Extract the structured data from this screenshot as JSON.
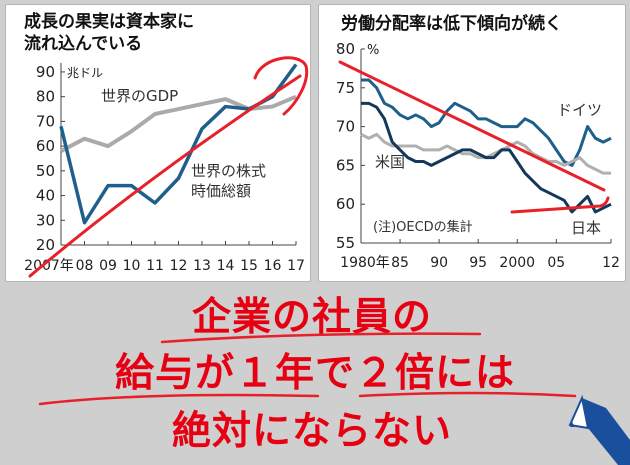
{
  "chart_data": [
    {
      "type": "line",
      "title": "成長の果実は資本家に流れ込んでいる",
      "title_lines": [
        "成長の果実は資本家に",
        "流れ込んでいる"
      ],
      "unit_label": "兆ドル",
      "x_tick_labels": [
        "2007年",
        "08",
        "09",
        "10",
        "11",
        "12",
        "13",
        "14",
        "15",
        "16",
        "17"
      ],
      "y_ticks": [
        20,
        30,
        40,
        50,
        60,
        70,
        80,
        90
      ],
      "ylim": [
        20,
        92
      ],
      "grid": false,
      "series": [
        {
          "name": "世界のGDP",
          "name_lines": [
            "世界のGDP"
          ],
          "color": "#aaaaaa",
          "x": [
            2007,
            2008,
            2009,
            2010,
            2011,
            2012,
            2013,
            2014,
            2015,
            2016,
            2017
          ],
          "values": [
            58,
            63,
            60,
            66,
            73,
            75,
            77,
            79,
            75,
            76,
            80
          ]
        },
        {
          "name": "世界の株式時価総額",
          "name_lines": [
            "世界の株式",
            "時価総額"
          ],
          "color": "#1f5f8b",
          "x": [
            2007,
            2008,
            2009,
            2010,
            2011,
            2012,
            2013,
            2014,
            2015,
            2016,
            2017
          ],
          "values": [
            68,
            29,
            44,
            44,
            37,
            47,
            67,
            76,
            75,
            80,
            93
          ]
        }
      ]
    },
    {
      "type": "line",
      "title": "労働分配率は低下傾向が続く",
      "unit_label": "%",
      "x_tick_labels": [
        "1980年",
        "85",
        "90",
        "95",
        "2000",
        "05",
        "12"
      ],
      "y_ticks": [
        55,
        60,
        65,
        70,
        75,
        80
      ],
      "ylim": [
        55,
        80
      ],
      "note": "(注)OECDの集計",
      "grid": false,
      "series": [
        {
          "name": "ドイツ",
          "color": "#1f5f8b",
          "x": [
            1980,
            1981,
            1982,
            1983,
            1984,
            1985,
            1986,
            1987,
            1988,
            1989,
            1990,
            1991,
            1992,
            1993,
            1994,
            1995,
            1996,
            1997,
            1998,
            1999,
            2000,
            2001,
            2002,
            2003,
            2004,
            2005,
            2006,
            2007,
            2008,
            2009,
            2010,
            2011,
            2012
          ],
          "values": [
            76,
            76,
            75,
            73,
            72.5,
            71.5,
            71,
            71.5,
            71,
            70,
            70.5,
            72,
            73,
            72.5,
            72,
            71,
            71,
            70.5,
            70,
            70,
            70,
            71,
            70.5,
            69.5,
            68.5,
            67,
            65.5,
            65,
            67,
            70,
            68.5,
            68,
            68.5
          ]
        },
        {
          "name": "米国",
          "color": "#b0b0b0",
          "x": [
            1980,
            1981,
            1982,
            1983,
            1984,
            1985,
            1986,
            1987,
            1988,
            1989,
            1990,
            1991,
            1992,
            1993,
            1994,
            1995,
            1996,
            1997,
            1998,
            1999,
            2000,
            2001,
            2002,
            2003,
            2004,
            2005,
            2006,
            2007,
            2008,
            2009,
            2010,
            2011,
            2012
          ],
          "values": [
            69,
            68.5,
            69,
            68,
            67.5,
            67.5,
            67.5,
            67.5,
            67,
            67,
            67,
            67.5,
            67,
            66.5,
            66.5,
            66,
            66,
            66.5,
            67,
            67.5,
            68,
            67.5,
            66.5,
            66,
            65.5,
            65.5,
            65,
            65.5,
            66,
            65,
            64.5,
            64,
            64
          ]
        },
        {
          "name": "日本",
          "color": "#14385a",
          "x": [
            1980,
            1981,
            1982,
            1983,
            1984,
            1985,
            1986,
            1987,
            1988,
            1989,
            1990,
            1991,
            1992,
            1993,
            1994,
            1995,
            1996,
            1997,
            1998,
            1999,
            2000,
            2001,
            2002,
            2003,
            2004,
            2005,
            2006,
            2007,
            2008,
            2009,
            2010,
            2011,
            2012
          ],
          "values": [
            73,
            73,
            72.5,
            71,
            68,
            67,
            66,
            65.5,
            65.5,
            65,
            65.5,
            66,
            66.5,
            67,
            67,
            66.5,
            66,
            66,
            67,
            67,
            65.5,
            64,
            63,
            62,
            61.5,
            61,
            60.5,
            59,
            60,
            61,
            59,
            59.5,
            60
          ]
        }
      ]
    }
  ],
  "caption_lines": [
    "企業の社員の",
    "給与が１年で２倍には",
    "絶対にならない"
  ]
}
